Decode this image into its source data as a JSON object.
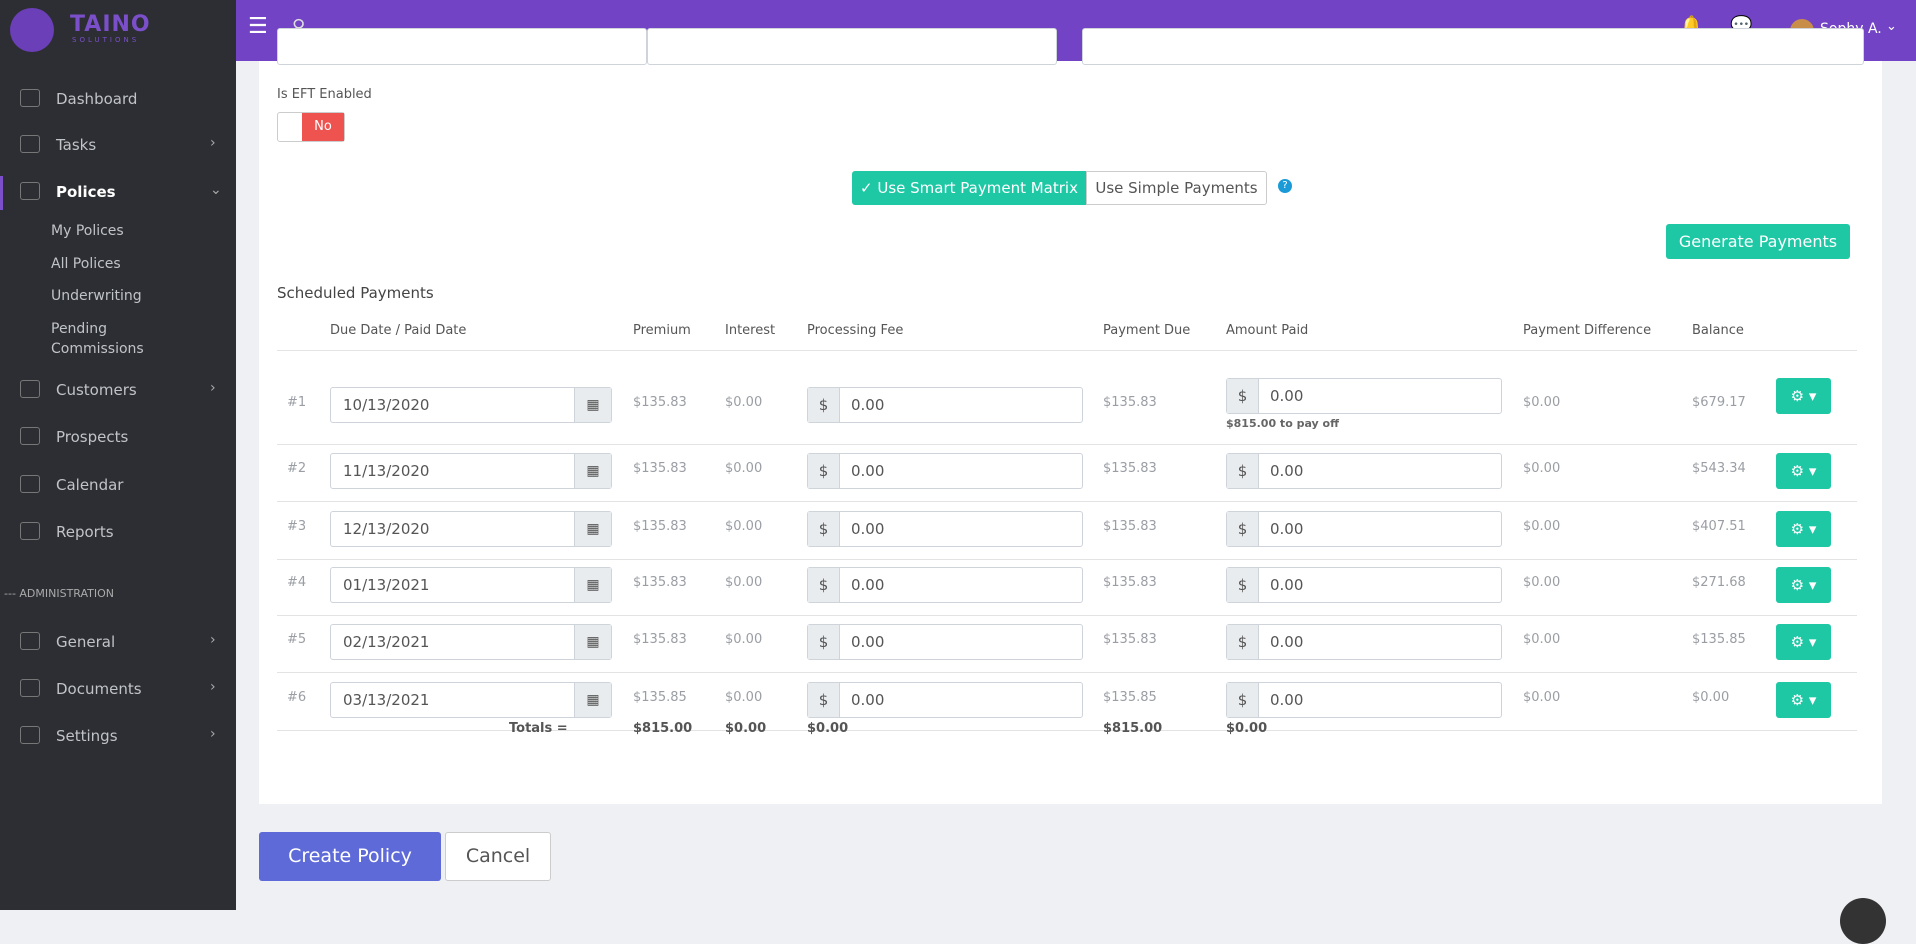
{
  "sidebar": {
    "brand": "TAINO",
    "brand_sub": "SOLUTIONS",
    "items": [
      {
        "label": "Dashboard"
      },
      {
        "label": "Tasks"
      },
      {
        "label": "Polices"
      },
      {
        "label": "My Polices"
      },
      {
        "label": "All Polices"
      },
      {
        "label": "Underwriting"
      },
      {
        "label": "Pending Commissions"
      },
      {
        "label": "Customers"
      },
      {
        "label": "Prospects"
      },
      {
        "label": "Calendar"
      },
      {
        "label": "Reports"
      },
      {
        "label": "--- ADMINISTRATION"
      },
      {
        "label": "General"
      },
      {
        "label": "Documents"
      },
      {
        "label": "Settings"
      }
    ]
  },
  "header": {
    "user": "Sophy A."
  },
  "form": {
    "eft_label": "Is EFT Enabled",
    "eft_value": "No",
    "mode_smart": "✓ Use Smart Payment Matrix",
    "mode_simple": "Use Simple Payments",
    "help": "?",
    "generate": "Generate Payments"
  },
  "table": {
    "title": "Scheduled Payments",
    "currency": "$",
    "columns": [
      "Due Date / Paid Date",
      "Premium",
      "Interest",
      "Processing Fee",
      "Payment Due",
      "Amount Paid",
      "Payment Difference",
      "Balance"
    ],
    "rows": [
      {
        "num": "#1",
        "date": "10/13/2020",
        "premium": "$135.83",
        "interest": "$0.00",
        "fee": "0.00",
        "due": "$135.83",
        "paid": "0.00",
        "note": "$815.00 to pay off",
        "diff": "$0.00",
        "balance": "$679.17"
      },
      {
        "num": "#2",
        "date": "11/13/2020",
        "premium": "$135.83",
        "interest": "$0.00",
        "fee": "0.00",
        "due": "$135.83",
        "paid": "0.00",
        "diff": "$0.00",
        "balance": "$543.34"
      },
      {
        "num": "#3",
        "date": "12/13/2020",
        "premium": "$135.83",
        "interest": "$0.00",
        "fee": "0.00",
        "due": "$135.83",
        "paid": "0.00",
        "diff": "$0.00",
        "balance": "$407.51"
      },
      {
        "num": "#4",
        "date": "01/13/2021",
        "premium": "$135.83",
        "interest": "$0.00",
        "fee": "0.00",
        "due": "$135.83",
        "paid": "0.00",
        "diff": "$0.00",
        "balance": "$271.68"
      },
      {
        "num": "#5",
        "date": "02/13/2021",
        "premium": "$135.83",
        "interest": "$0.00",
        "fee": "0.00",
        "due": "$135.83",
        "paid": "0.00",
        "diff": "$0.00",
        "balance": "$135.85"
      },
      {
        "num": "#6",
        "date": "03/13/2021",
        "premium": "$135.85",
        "interest": "$0.00",
        "fee": "0.00",
        "due": "$135.85",
        "paid": "0.00",
        "diff": "$0.00",
        "balance": "$0.00"
      }
    ],
    "totals": {
      "label": "Totals =",
      "premium": "$815.00",
      "interest": "$0.00",
      "fee": "$0.00",
      "due": "$815.00",
      "paid": "$0.00"
    }
  },
  "buttons": {
    "create": "Create Policy",
    "cancel": "Cancel"
  }
}
